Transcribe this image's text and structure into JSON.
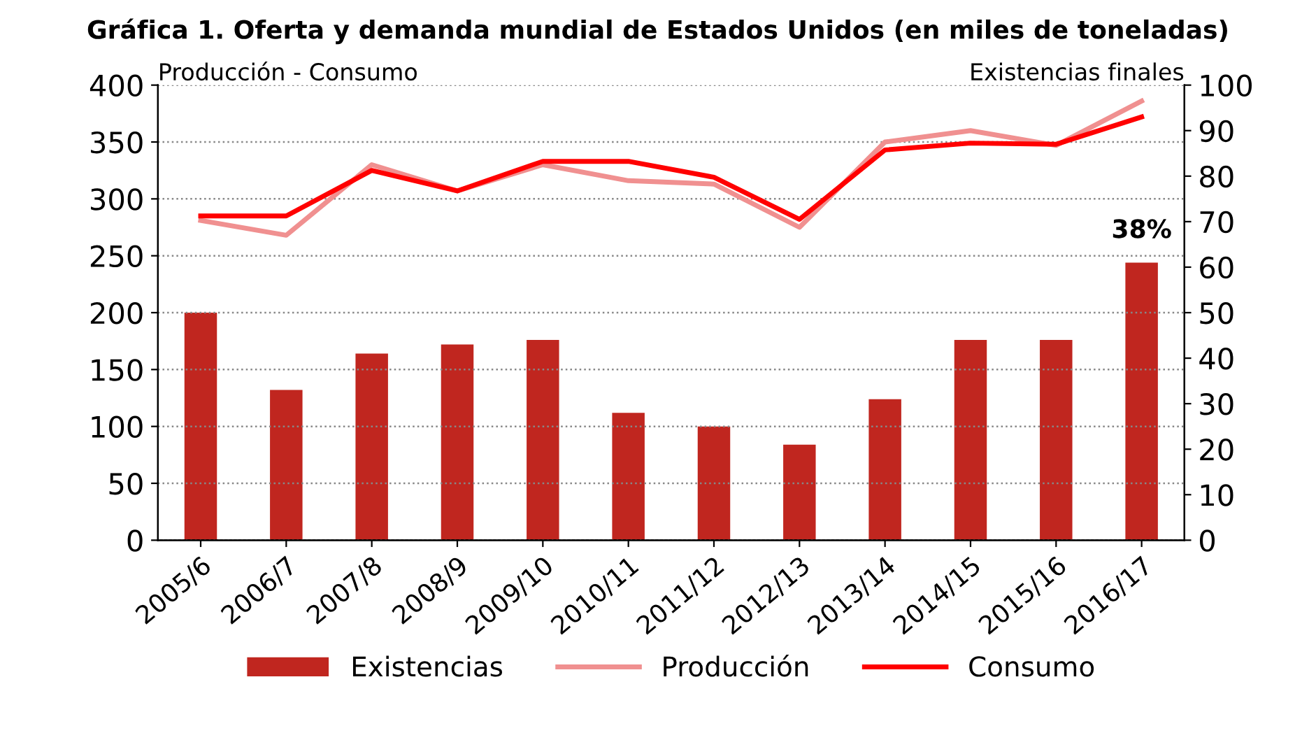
{
  "chart_data": {
    "type": "bar",
    "title": "Gráfica 1. Oferta y demanda mundial de Estados Unidos (en miles de toneladas)",
    "ylabel": "Producción - Consumo",
    "y2label": "Existencias finales",
    "categories": [
      "2005/6",
      "2006/7",
      "2007/8",
      "2008/9",
      "2009/10",
      "2010/11",
      "2011/12",
      "2012/13",
      "2013/14",
      "2014/15",
      "2015/16",
      "2016/17"
    ],
    "series": [
      {
        "name": "Existencias",
        "axis": "y2",
        "color": "#c0261f",
        "values": [
          50,
          33,
          41,
          43,
          44,
          28,
          25,
          21,
          31,
          44,
          44,
          61
        ]
      },
      {
        "name": "Producción",
        "type": "line",
        "color": "#f09090",
        "values": [
          281,
          268,
          330,
          307,
          330,
          316,
          313,
          275,
          350,
          360,
          347,
          386
        ]
      },
      {
        "name": "Consumo",
        "type": "line",
        "color": "#ff0000",
        "values": [
          285,
          285,
          325,
          307,
          333,
          333,
          319,
          282,
          343,
          349,
          348,
          372
        ]
      }
    ],
    "annotations": [
      "38%"
    ],
    "ylim": [
      0,
      400
    ],
    "yticks": [
      0,
      50,
      100,
      150,
      200,
      250,
      300,
      350,
      400
    ],
    "y2lim": [
      0,
      100
    ],
    "y2ticks": [
      0,
      10,
      20,
      30,
      40,
      50,
      60,
      70,
      80,
      90,
      100
    ],
    "grid": "y",
    "legend": "bottom",
    "line_style": "solid",
    "marker": "none"
  }
}
